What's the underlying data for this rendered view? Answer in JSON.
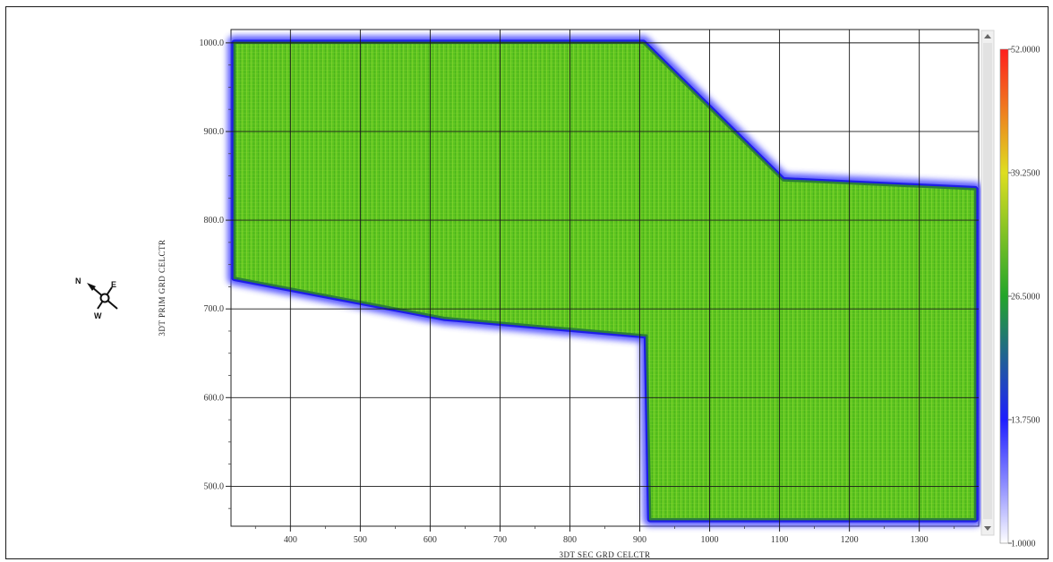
{
  "chart_data": {
    "type": "heatmap",
    "title": "",
    "xlabel": "3DT SEC GRD CELCTR",
    "ylabel": "3DT PRIM GRD CELCTR",
    "xlim": [
      315,
      1385
    ],
    "ylim": [
      455,
      1015
    ],
    "x_ticks": [
      400,
      500,
      600,
      700,
      800,
      900,
      1000,
      1100,
      1200,
      1300
    ],
    "x_tick_labels": [
      "400",
      "500",
      "600",
      "700",
      "800",
      "900",
      "1000",
      "1100",
      "1200",
      "1300"
    ],
    "y_ticks": [
      500,
      600,
      700,
      800,
      900,
      1000
    ],
    "y_tick_labels": [
      "500.0",
      "600.0",
      "700.0",
      "800.0",
      "900.0",
      "1000.0"
    ],
    "grid": true,
    "survey_outline": [
      [
        320,
        1000
      ],
      [
        905,
        1000
      ],
      [
        1105,
        845
      ],
      [
        1380,
        835
      ],
      [
        1380,
        463
      ],
      [
        915,
        463
      ],
      [
        910,
        670
      ],
      [
        620,
        690
      ],
      [
        320,
        735
      ]
    ],
    "fill_value_typical": 28,
    "colorbar": {
      "min": 1.0,
      "max": 52.0,
      "tick_values": [
        52.0,
        39.25,
        26.5,
        13.75,
        1.0
      ],
      "tick_labels": [
        "52.0000",
        "39.2500",
        "26.5000",
        "13.7500",
        "1.0000"
      ],
      "colors": [
        "#ffffff",
        "#1e1eff",
        "#22a52a",
        "#dede20",
        "#ff1e1e"
      ]
    }
  },
  "compass": {
    "north": "N",
    "east": "E",
    "west": "W"
  }
}
